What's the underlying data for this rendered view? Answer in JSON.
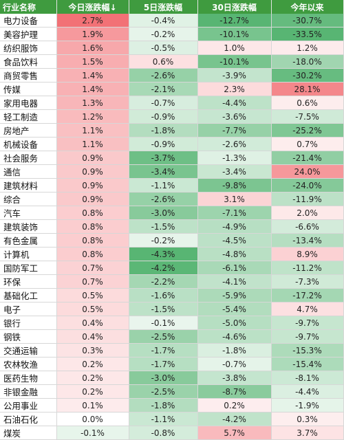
{
  "table": {
    "headers": [
      "行业名称",
      "今日涨跌幅↓",
      "5日涨跌幅",
      "30日涨跌幅",
      "今年以来"
    ],
    "rows": [
      [
        "电力设备",
        "2.7%",
        "-0.4%",
        "-12.7%",
        "-30.7%"
      ],
      [
        "美容护理",
        "1.9%",
        "-0.2%",
        "-10.1%",
        "-33.5%"
      ],
      [
        "纺织服饰",
        "1.6%",
        "-0.5%",
        "1.0%",
        "1.2%"
      ],
      [
        "食品饮料",
        "1.5%",
        "0.6%",
        "-10.1%",
        "-18.0%"
      ],
      [
        "商贸零售",
        "1.4%",
        "-2.6%",
        "-3.9%",
        "-30.2%"
      ],
      [
        "传媒",
        "1.4%",
        "-2.1%",
        "2.3%",
        "28.1%"
      ],
      [
        "家用电器",
        "1.3%",
        "-0.7%",
        "-4.4%",
        "0.6%"
      ],
      [
        "轻工制造",
        "1.2%",
        "-0.9%",
        "-3.6%",
        "-7.5%"
      ],
      [
        "房地产",
        "1.1%",
        "-1.8%",
        "-7.7%",
        "-25.2%"
      ],
      [
        "机械设备",
        "1.1%",
        "-0.9%",
        "-2.6%",
        "0.7%"
      ],
      [
        "社会服务",
        "0.9%",
        "-3.7%",
        "-1.3%",
        "-21.4%"
      ],
      [
        "通信",
        "0.9%",
        "-3.4%",
        "-3.4%",
        "24.0%"
      ],
      [
        "建筑材料",
        "0.9%",
        "-1.1%",
        "-9.8%",
        "-24.0%"
      ],
      [
        "综合",
        "0.9%",
        "-2.6%",
        "3.1%",
        "-11.9%"
      ],
      [
        "汽车",
        "0.8%",
        "-3.0%",
        "-7.1%",
        "2.0%"
      ],
      [
        "建筑装饰",
        "0.8%",
        "-1.5%",
        "-4.9%",
        "-6.6%"
      ],
      [
        "有色金属",
        "0.8%",
        "-0.2%",
        "-4.5%",
        "-13.4%"
      ],
      [
        "计算机",
        "0.8%",
        "-4.3%",
        "-4.8%",
        "8.9%"
      ],
      [
        "国防军工",
        "0.7%",
        "-4.2%",
        "-6.1%",
        "-11.2%"
      ],
      [
        "环保",
        "0.7%",
        "-2.2%",
        "-4.1%",
        "-7.3%"
      ],
      [
        "基础化工",
        "0.5%",
        "-1.6%",
        "-5.9%",
        "-17.2%"
      ],
      [
        "电子",
        "0.5%",
        "-1.5%",
        "-5.4%",
        "4.7%"
      ],
      [
        "银行",
        "0.4%",
        "-0.1%",
        "-5.0%",
        "-9.7%"
      ],
      [
        "钢铁",
        "0.4%",
        "-2.5%",
        "-4.6%",
        "-9.7%"
      ],
      [
        "交通运输",
        "0.3%",
        "-1.7%",
        "-1.8%",
        "-15.3%"
      ],
      [
        "农林牧渔",
        "0.2%",
        "-1.7%",
        "-0.7%",
        "-15.4%"
      ],
      [
        "医药生物",
        "0.2%",
        "-3.0%",
        "-3.8%",
        "-8.1%"
      ],
      [
        "非银金融",
        "0.2%",
        "-2.5%",
        "-8.7%",
        "-4.4%"
      ],
      [
        "公用事业",
        "0.1%",
        "-1.8%",
        "0.2%",
        "-1.9%"
      ],
      [
        "石油石化",
        "0.0%",
        "-1.1%",
        "-4.2%",
        "0.3%"
      ],
      [
        "煤炭",
        "-0.1%",
        "-0.8%",
        "5.7%",
        "3.7%"
      ]
    ]
  },
  "colors": {
    "header_bg": "#3f9b3f",
    "positive": "#f0585e",
    "negative": "#3aa85a"
  }
}
